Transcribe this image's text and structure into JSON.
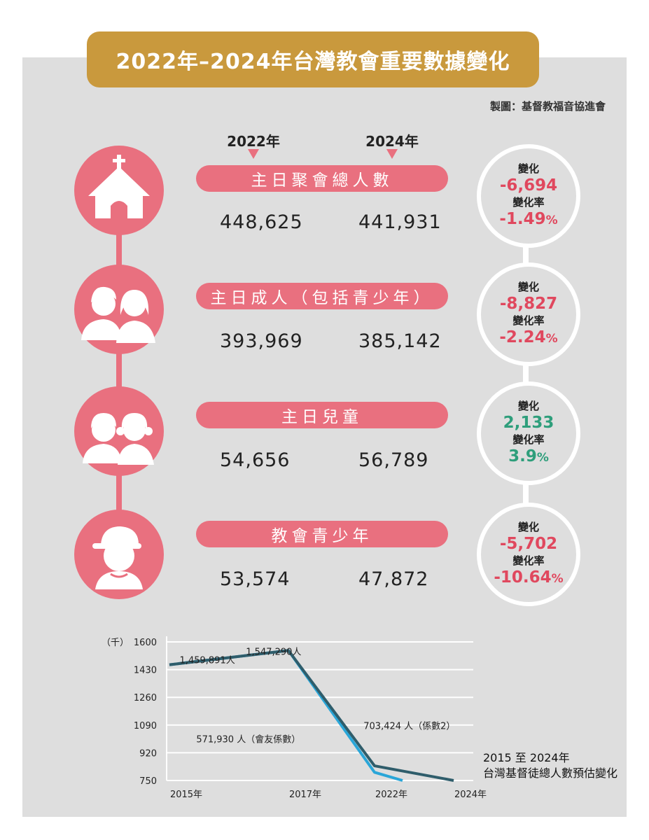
{
  "title": "2022年–2024年台灣教會重要數據變化",
  "credit": "製圖：基督教福音協進會",
  "years": [
    "2022年",
    "2024年"
  ],
  "rows": [
    {
      "icon": "church-icon",
      "label": "主日聚會總人數",
      "v2022": "448,625",
      "v2024": "441,931",
      "change_label": "變化",
      "change": "-6,694",
      "rate_label": "變化率",
      "rate": "-1.49",
      "rate_unit": "%",
      "trend": "negative"
    },
    {
      "icon": "adults-icon",
      "label": "主日成人（包括青少年）",
      "v2022": "393,969",
      "v2024": "385,142",
      "change_label": "變化",
      "change": "-8,827",
      "rate_label": "變化率",
      "rate": "-2.24",
      "rate_unit": "%",
      "trend": "negative"
    },
    {
      "icon": "children-icon",
      "label": "主日兒童",
      "v2022": "54,656",
      "v2024": "56,789",
      "change_label": "變化",
      "change": "2,133",
      "rate_label": "變化率",
      "rate": "3.9",
      "rate_unit": "%",
      "trend": "positive"
    },
    {
      "icon": "teen-icon",
      "label": "教會青少年",
      "v2022": "53,574",
      "v2024": "47,872",
      "change_label": "變化",
      "change": "-5,702",
      "rate_label": "變化率",
      "rate": "-10.64",
      "rate_unit": "%",
      "trend": "negative"
    }
  ],
  "colors": {
    "accent": "#e9707f",
    "title_bg": "#c9993d",
    "negative": "#e0485e",
    "positive": "#2e9e7b",
    "series_dark": "#2f5d6b",
    "series_light": "#2aa6d8"
  },
  "chart_data": {
    "type": "line",
    "ylabel": "（千）",
    "ylim": [
      750,
      1600
    ],
    "yticks": [
      1600,
      1430,
      1260,
      1090,
      920,
      750
    ],
    "xticks": [
      "2015年",
      "2017年",
      "2022年",
      "2024年"
    ],
    "caption": [
      "2015 至 2024年",
      "台灣基督徒總人數預估變化"
    ],
    "series": [
      {
        "name": "",
        "color": "#2aa6d8",
        "points": [
          [
            2015,
            1459.9
          ],
          [
            2017,
            1547.3
          ],
          [
            2022,
            800
          ],
          [
            2023,
            750
          ]
        ]
      },
      {
        "name": "",
        "color": "#2f5d6b",
        "points": [
          [
            2015,
            1459.9
          ],
          [
            2017,
            1547.3
          ],
          [
            2022,
            840
          ],
          [
            2024,
            750
          ]
        ]
      }
    ],
    "annotations": [
      {
        "text": "1,547,290人",
        "x": 2018.3,
        "y": 1520
      },
      {
        "text": "1,459,891人",
        "x": 2016.2,
        "y": 1470
      },
      {
        "text": "703,424 人（係數2）",
        "x": 2022.6,
        "y": 1065
      },
      {
        "text": "571,930 人（會友係數）",
        "x": 2017.5,
        "y": 985
      }
    ]
  }
}
